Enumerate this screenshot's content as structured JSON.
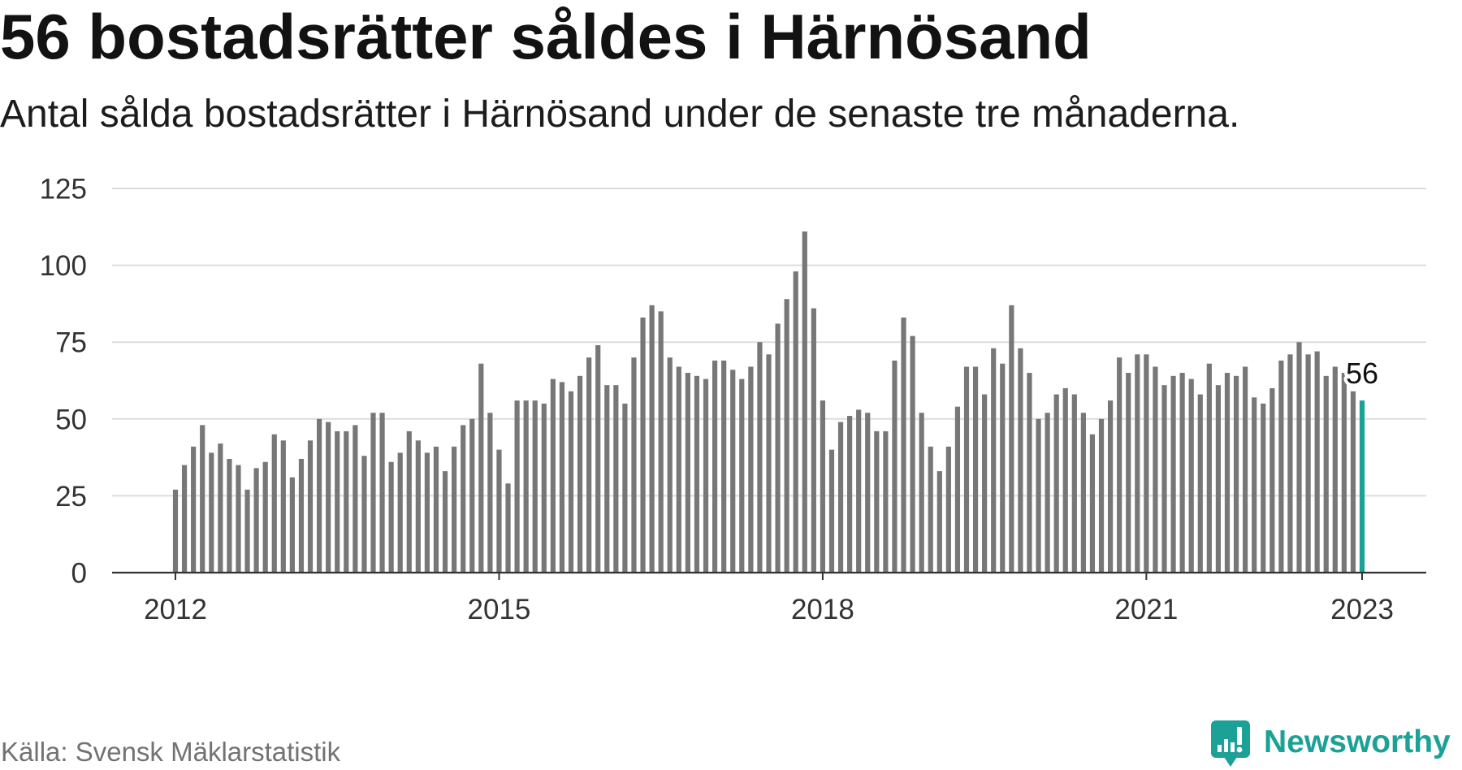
{
  "chart_data": {
    "type": "bar",
    "title": "56 bostadsrätter såldes i Härnösand",
    "subtitle": "Antal sålda bostadsrätter i Härnösand under de senaste tre månaderna.",
    "ylim": [
      0,
      125
    ],
    "yticks": [
      0,
      25,
      50,
      75,
      100,
      125
    ],
    "xticks": [
      "2012",
      "2015",
      "2018",
      "2021",
      "2023"
    ],
    "grid": true,
    "x": [
      "2012-01",
      "2012-02",
      "2012-03",
      "2012-04",
      "2012-05",
      "2012-06",
      "2012-07",
      "2012-08",
      "2012-09",
      "2012-10",
      "2012-11",
      "2012-12",
      "2013-01",
      "2013-02",
      "2013-03",
      "2013-04",
      "2013-05",
      "2013-06",
      "2013-07",
      "2013-08",
      "2013-09",
      "2013-10",
      "2013-11",
      "2013-12",
      "2014-01",
      "2014-02",
      "2014-03",
      "2014-04",
      "2014-05",
      "2014-06",
      "2014-07",
      "2014-08",
      "2014-09",
      "2014-10",
      "2014-11",
      "2014-12",
      "2015-01",
      "2015-02",
      "2015-03",
      "2015-04",
      "2015-05",
      "2015-06",
      "2015-07",
      "2015-08",
      "2015-09",
      "2015-10",
      "2015-11",
      "2015-12",
      "2016-01",
      "2016-02",
      "2016-03",
      "2016-04",
      "2016-05",
      "2016-06",
      "2016-07",
      "2016-08",
      "2016-09",
      "2016-10",
      "2016-11",
      "2016-12",
      "2017-01",
      "2017-02",
      "2017-03",
      "2017-04",
      "2017-05",
      "2017-06",
      "2017-07",
      "2017-08",
      "2017-09",
      "2017-10",
      "2017-11",
      "2017-12",
      "2018-01",
      "2018-02",
      "2018-03",
      "2018-04",
      "2018-05",
      "2018-06",
      "2018-07",
      "2018-08",
      "2018-09",
      "2018-10",
      "2018-11",
      "2018-12",
      "2019-01",
      "2019-02",
      "2019-03",
      "2019-04",
      "2019-05",
      "2019-06",
      "2019-07",
      "2019-08",
      "2019-09",
      "2019-10",
      "2019-11",
      "2019-12",
      "2020-01",
      "2020-02",
      "2020-03",
      "2020-04",
      "2020-05",
      "2020-06",
      "2020-07",
      "2020-08",
      "2020-09",
      "2020-10",
      "2020-11",
      "2020-12",
      "2021-01",
      "2021-02",
      "2021-03",
      "2021-04",
      "2021-05",
      "2021-06",
      "2021-07",
      "2021-08",
      "2021-09",
      "2021-10",
      "2021-11",
      "2021-12",
      "2022-01",
      "2022-02",
      "2022-03",
      "2022-04",
      "2022-05",
      "2022-06",
      "2022-07",
      "2022-08",
      "2022-09",
      "2022-10",
      "2022-11",
      "2022-12",
      "2023-01"
    ],
    "values": [
      27,
      35,
      41,
      48,
      39,
      42,
      37,
      35,
      27,
      34,
      36,
      45,
      43,
      31,
      37,
      43,
      50,
      49,
      46,
      46,
      48,
      38,
      52,
      52,
      36,
      39,
      46,
      43,
      39,
      41,
      33,
      41,
      48,
      50,
      68,
      52,
      40,
      29,
      56,
      56,
      56,
      55,
      63,
      62,
      59,
      64,
      70,
      74,
      61,
      61,
      55,
      70,
      83,
      87,
      85,
      70,
      67,
      65,
      64,
      63,
      69,
      69,
      66,
      63,
      67,
      75,
      71,
      81,
      89,
      98,
      111,
      86,
      56,
      40,
      49,
      51,
      53,
      52,
      46,
      46,
      69,
      83,
      77,
      52,
      41,
      33,
      41,
      54,
      67,
      67,
      58,
      73,
      68,
      87,
      73,
      65,
      50,
      52,
      58,
      60,
      58,
      52,
      45,
      50,
      56,
      70,
      65,
      71,
      71,
      67,
      61,
      64,
      65,
      63,
      58,
      68,
      61,
      65,
      64,
      67,
      57,
      55,
      60,
      69,
      71,
      75,
      71,
      72,
      64,
      67,
      65,
      59,
      56
    ],
    "highlight": {
      "x": "2023-01",
      "label": "56"
    }
  },
  "source": "Källa: Svensk Mäklarstatistik",
  "brand": {
    "name": "Newsworthy",
    "icon": "newsworthy-logo-icon"
  },
  "colors": {
    "bar": "#777777",
    "highlight": "#1ba195",
    "grid": "#dddddd",
    "axis": "#333333",
    "brand": "#1ba195"
  }
}
